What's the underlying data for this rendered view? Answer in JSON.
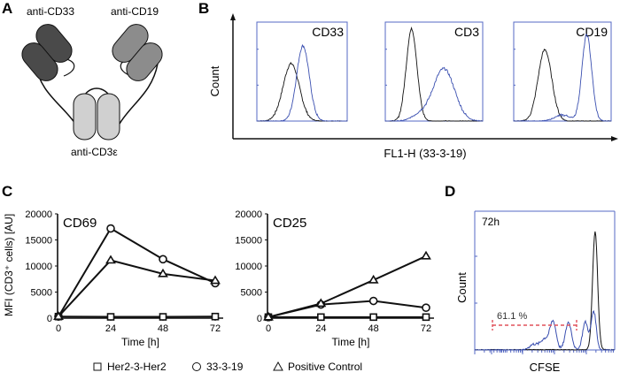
{
  "panels": {
    "A": {
      "label": "A",
      "arm_left": "anti-CD33",
      "arm_right": "anti-CD19",
      "arm_bottom": "anti-CD3ε",
      "colors": {
        "left": "#4a4a4a",
        "right": "#8c8c8c",
        "bottom": "#d0d0d0"
      }
    },
    "B": {
      "label": "B"
    },
    "C": {
      "label": "C"
    },
    "D": {
      "label": "D"
    }
  },
  "legend": {
    "items": [
      {
        "symbol": "square",
        "label": "Her2-3-Her2"
      },
      {
        "symbol": "circle",
        "label": "33-3-19"
      },
      {
        "symbol": "triangle",
        "label": "Positive Control"
      }
    ]
  },
  "chart_data": [
    {
      "id": "B",
      "type": "line",
      "title": "",
      "xlabel": "FL1-H (33-3-19)",
      "ylabel": "Count",
      "colors": {
        "control": "#111111",
        "stained": "#3a4fb0",
        "frame": "#5468c4"
      },
      "subplots": [
        {
          "title": "CD33",
          "control_peak_x": 0.38,
          "control_peak_h": 0.58,
          "control_width": 0.09,
          "stained_peak_x": 0.51,
          "stained_peak_h": 0.76,
          "stained_width": 0.07
        },
        {
          "title": "CD3",
          "control_peak_x": 0.27,
          "control_peak_h": 0.93,
          "control_width": 0.055,
          "stained_peak_x": 0.6,
          "stained_peak_h": 0.53,
          "stained_width": 0.11
        },
        {
          "title": "CD19",
          "control_peak_x": 0.32,
          "control_peak_h": 0.72,
          "control_width": 0.07,
          "stained_peak_x": 0.75,
          "stained_peak_h": 0.87,
          "stained_width": 0.05
        }
      ]
    },
    {
      "id": "C-CD69",
      "type": "line",
      "title": "CD69",
      "xlabel": "Time [h]",
      "ylabel": "MFI (CD3⁺ cells) [AU]",
      "x": [
        0,
        24,
        48,
        72
      ],
      "xticks": [
        "0",
        "24",
        "48",
        "72"
      ],
      "yticks": [
        "0",
        "5000",
        "10000",
        "15000",
        "20000"
      ],
      "ylim": [
        0,
        20000
      ],
      "series": [
        {
          "name": "Her2-3-Her2",
          "marker": "square",
          "values": [
            300,
            250,
            250,
            300
          ]
        },
        {
          "name": "33-3-19",
          "marker": "circle",
          "values": [
            300,
            17200,
            11300,
            6700
          ]
        },
        {
          "name": "Positive Control",
          "marker": "triangle",
          "values": [
            300,
            11100,
            8500,
            7200
          ]
        }
      ]
    },
    {
      "id": "C-CD25",
      "type": "line",
      "title": "CD25",
      "xlabel": "Time [h]",
      "ylabel": "",
      "x": [
        0,
        24,
        48,
        72
      ],
      "xticks": [
        "0",
        "24",
        "48",
        "72"
      ],
      "yticks": [
        "0",
        "5000",
        "10000",
        "15000",
        "20000"
      ],
      "ylim": [
        0,
        20000
      ],
      "series": [
        {
          "name": "Her2-3-Her2",
          "marker": "square",
          "values": [
            200,
            200,
            200,
            200
          ]
        },
        {
          "name": "33-3-19",
          "marker": "circle",
          "values": [
            200,
            2600,
            3300,
            2000
          ]
        },
        {
          "name": "Positive Control",
          "marker": "triangle",
          "values": [
            200,
            2800,
            7300,
            11900
          ]
        }
      ]
    },
    {
      "id": "D",
      "type": "line",
      "title": "72h",
      "xlabel": "CFSE",
      "ylabel": "Count",
      "annotation": "61.1 %",
      "colors": {
        "stained": "#3a4fb0",
        "control": "#111111",
        "gate": "#e0505a",
        "frame": "#5468c4"
      }
    }
  ]
}
